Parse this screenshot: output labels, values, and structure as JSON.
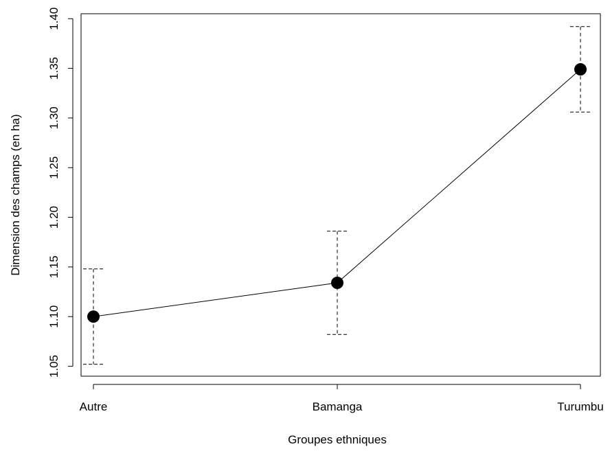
{
  "chart_data": {
    "type": "line",
    "title": "",
    "xlabel": "Groupes ethniques",
    "ylabel": "Dimension des champs (en ha)",
    "categories": [
      "Autre",
      "Bamanga",
      "Turumbu"
    ],
    "values": [
      1.1,
      1.134,
      1.349
    ],
    "error_low": [
      1.052,
      1.082,
      1.306
    ],
    "error_high": [
      1.148,
      1.186,
      1.392
    ],
    "ylim": [
      1.04,
      1.405
    ],
    "yticks": [
      1.05,
      1.1,
      1.15,
      1.2,
      1.25,
      1.3,
      1.35,
      1.4
    ],
    "ytick_labels": [
      "1.05",
      "1.10",
      "1.15",
      "1.20",
      "1.25",
      "1.30",
      "1.35",
      "1.40"
    ],
    "grid": false,
    "legend": "none",
    "colors": {
      "line": "#000000",
      "marker": "#000000",
      "frame": "#000000"
    }
  }
}
